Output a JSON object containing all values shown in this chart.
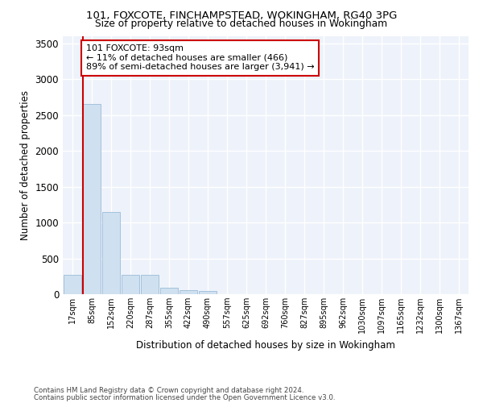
{
  "title1": "101, FOXCOTE, FINCHAMPSTEAD, WOKINGHAM, RG40 3PG",
  "title2": "Size of property relative to detached houses in Wokingham",
  "xlabel": "Distribution of detached houses by size in Wokingham",
  "ylabel": "Number of detached properties",
  "bar_color": "#cfe0f0",
  "bar_edge_color": "#9bbcd8",
  "annotation_line_color": "#cc0000",
  "annotation_box_edgecolor": "#cc0000",
  "annotation_text": "101 FOXCOTE: 93sqm\n← 11% of detached houses are smaller (466)\n89% of semi-detached houses are larger (3,941) →",
  "footer1": "Contains HM Land Registry data © Crown copyright and database right 2024.",
  "footer2": "Contains public sector information licensed under the Open Government Licence v3.0.",
  "categories": [
    "17sqm",
    "85sqm",
    "152sqm",
    "220sqm",
    "287sqm",
    "355sqm",
    "422sqm",
    "490sqm",
    "557sqm",
    "625sqm",
    "692sqm",
    "760sqm",
    "827sqm",
    "895sqm",
    "962sqm",
    "1030sqm",
    "1097sqm",
    "1165sqm",
    "1232sqm",
    "1300sqm",
    "1367sqm"
  ],
  "values": [
    270,
    2650,
    1150,
    270,
    270,
    90,
    60,
    40,
    0,
    0,
    0,
    0,
    0,
    0,
    0,
    0,
    0,
    0,
    0,
    0,
    0
  ],
  "ylim": [
    0,
    3600
  ],
  "yticks": [
    0,
    500,
    1000,
    1500,
    2000,
    2500,
    3000,
    3500
  ],
  "background_color": "#eef2fa",
  "grid_color": "#ffffff"
}
